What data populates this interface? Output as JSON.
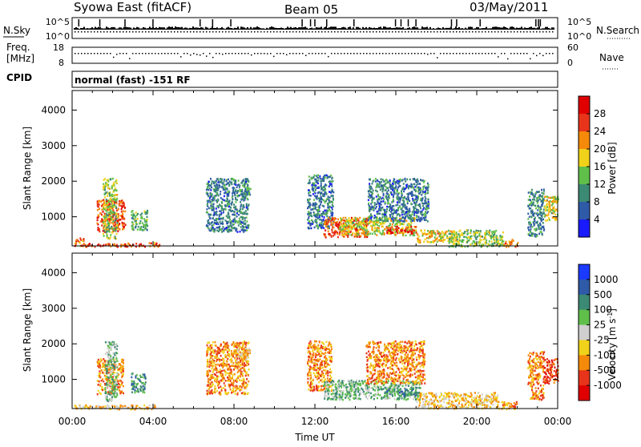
{
  "header": {
    "station": "Syowa East (fitACF)",
    "beam": "Beam 05",
    "date": "03/May/2011"
  },
  "top_panels": {
    "nsky_label": "N.Sky",
    "nsky_ticks": [
      "10^5",
      "10^0"
    ],
    "nsearch_label": "N.Search",
    "nsearch_ticks": [
      "10^5",
      "10^0"
    ],
    "freq_label_1": "Freq.",
    "freq_label_2": "[MHz]",
    "freq_ticks": [
      "18",
      "8"
    ],
    "nave_label": "Nave",
    "nave_ticks": [
      "60",
      "0"
    ],
    "cpid_label": "CPID",
    "cpid_value": "normal (fast) -151 RF"
  },
  "chart_data": [
    {
      "type": "heatmap",
      "name": "power",
      "xlabel": "Time UT",
      "ylabel": "Slant Range [km]",
      "xlim": [
        0,
        24
      ],
      "x_tick_labels": [
        "00:00",
        "04:00",
        "08:00",
        "12:00",
        "16:00",
        "20:00",
        "00:00"
      ],
      "ylim": [
        180,
        4550
      ],
      "y_ticks": [
        1000,
        2000,
        3000,
        4000
      ],
      "colorbar_label": "Power [dB]",
      "colorbar_ticks": [
        "4",
        "8",
        "12",
        "16",
        "20",
        "24",
        "28"
      ],
      "color_range": [
        0,
        30
      ],
      "colors": [
        "#1a1aff",
        "#2f5aa8",
        "#3c8a73",
        "#5fbf4a",
        "#f0d21a",
        "#f58a0a",
        "#e8341a",
        "#e00000"
      ],
      "regions": [
        {
          "t0": 0.1,
          "t1": 0.6,
          "r0": 180,
          "r1": 420,
          "v": 22
        },
        {
          "t0": 0.6,
          "t1": 3.6,
          "r0": 180,
          "r1": 280,
          "v": 24
        },
        {
          "t0": 1.2,
          "t1": 2.6,
          "r0": 600,
          "r1": 1500,
          "v": 24
        },
        {
          "t0": 1.5,
          "t1": 2.2,
          "r0": 400,
          "r1": 2100,
          "v": 14
        },
        {
          "t0": 2.9,
          "t1": 3.7,
          "r0": 650,
          "r1": 1200,
          "v": 12
        },
        {
          "t0": 3.7,
          "t1": 4.3,
          "r0": 180,
          "r1": 300,
          "v": 22
        },
        {
          "t0": 6.6,
          "t1": 8.7,
          "r0": 600,
          "r1": 2100,
          "v": 8
        },
        {
          "t0": 8.1,
          "t1": 8.8,
          "r0": 1600,
          "r1": 1850,
          "v": 10
        },
        {
          "t0": 11.6,
          "t1": 12.9,
          "r0": 700,
          "r1": 2200,
          "v": 8
        },
        {
          "t0": 12.4,
          "t1": 14.6,
          "r0": 450,
          "r1": 1000,
          "v": 24
        },
        {
          "t0": 13.2,
          "t1": 17.0,
          "r0": 500,
          "r1": 1000,
          "v": 16
        },
        {
          "t0": 14.6,
          "t1": 17.6,
          "r0": 900,
          "r1": 2100,
          "v": 8
        },
        {
          "t0": 15.5,
          "t1": 17.0,
          "r0": 550,
          "r1": 750,
          "v": 26
        },
        {
          "t0": 17.0,
          "t1": 19.0,
          "r0": 300,
          "r1": 650,
          "v": 18
        },
        {
          "t0": 18.6,
          "t1": 21.3,
          "r0": 180,
          "r1": 650,
          "v": 14
        },
        {
          "t0": 21.3,
          "t1": 22.0,
          "r0": 180,
          "r1": 380,
          "v": 22
        },
        {
          "t0": 22.5,
          "t1": 23.3,
          "r0": 450,
          "r1": 1800,
          "v": 9
        },
        {
          "t0": 23.3,
          "t1": 24.0,
          "r0": 900,
          "r1": 1600,
          "v": 16
        }
      ]
    },
    {
      "type": "heatmap",
      "name": "velocity",
      "xlabel": "Time UT",
      "ylabel": "Slant Range [km]",
      "xlim": [
        0,
        24
      ],
      "x_tick_labels": [
        "00:00",
        "04:00",
        "08:00",
        "12:00",
        "16:00",
        "20:00",
        "00:00"
      ],
      "ylim": [
        180,
        4550
      ],
      "y_ticks": [
        1000,
        2000,
        3000,
        4000
      ],
      "colorbar_label": "Velocity [m s",
      "colorbar_label_sup": "-1",
      "colorbar_label_end": "]",
      "colorbar_ticks": [
        "1000",
        "500",
        "100",
        "25",
        "-25",
        "-100",
        "-500",
        "-1000"
      ],
      "colors": [
        "#1a3aff",
        "#2f5aa8",
        "#3c8a73",
        "#5fbf4a",
        "#cfcfcf",
        "#f0d21a",
        "#f58a0a",
        "#e8341a",
        "#e00000"
      ],
      "regions": [
        {
          "t0": 0.1,
          "t1": 4.2,
          "r0": 180,
          "r1": 300,
          "c": 5
        },
        {
          "t0": 1.2,
          "t1": 2.5,
          "r0": 600,
          "r1": 1600,
          "c": 6
        },
        {
          "t0": 1.6,
          "t1": 2.2,
          "r0": 400,
          "r1": 2100,
          "c": 3
        },
        {
          "t0": 2.9,
          "t1": 3.6,
          "r0": 650,
          "r1": 1200,
          "c": 2
        },
        {
          "t0": 6.6,
          "t1": 8.7,
          "r0": 600,
          "r1": 2100,
          "c": 6
        },
        {
          "t0": 8.0,
          "t1": 8.8,
          "r0": 1500,
          "r1": 1900,
          "c": 5
        },
        {
          "t0": 11.6,
          "t1": 12.8,
          "r0": 700,
          "r1": 2100,
          "c": 6
        },
        {
          "t0": 12.4,
          "t1": 17.2,
          "r0": 450,
          "r1": 1000,
          "c": 3
        },
        {
          "t0": 14.5,
          "t1": 17.4,
          "r0": 900,
          "r1": 2100,
          "c": 6
        },
        {
          "t0": 15.5,
          "t1": 17.0,
          "r0": 550,
          "r1": 760,
          "c": 2
        },
        {
          "t0": 17.0,
          "t1": 21.0,
          "r0": 200,
          "r1": 650,
          "c": 5
        },
        {
          "t0": 21.0,
          "t1": 22.0,
          "r0": 180,
          "r1": 400,
          "c": 6
        },
        {
          "t0": 22.5,
          "t1": 23.3,
          "r0": 450,
          "r1": 1800,
          "c": 6
        },
        {
          "t0": 23.3,
          "t1": 24.0,
          "r0": 900,
          "r1": 1600,
          "c": 7
        }
      ]
    }
  ],
  "x_axis_title": "Time UT"
}
